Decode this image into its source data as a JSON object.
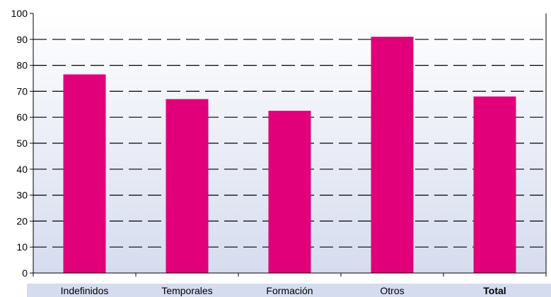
{
  "chart_data": {
    "type": "bar",
    "categories": [
      "Indefinidos",
      "Temporales",
      "Formación",
      "Otros",
      "Total"
    ],
    "bold_categories": [
      "Total"
    ],
    "values": [
      76.5,
      67,
      62.5,
      91,
      68
    ],
    "ylim": [
      0,
      100
    ],
    "yticks": [
      0,
      10,
      20,
      30,
      40,
      50,
      60,
      70,
      80,
      90,
      100
    ],
    "title": "",
    "xlabel": "",
    "ylabel": "",
    "grid": "dashed horizontal",
    "legend": "none",
    "colors": {
      "bar": "#e2007a",
      "plot_bg_top": "#ffffff",
      "plot_bg_bottom": "#d6dcef",
      "category_band": "#d6dcef",
      "grid": "#000000",
      "axis": "#000000"
    }
  }
}
